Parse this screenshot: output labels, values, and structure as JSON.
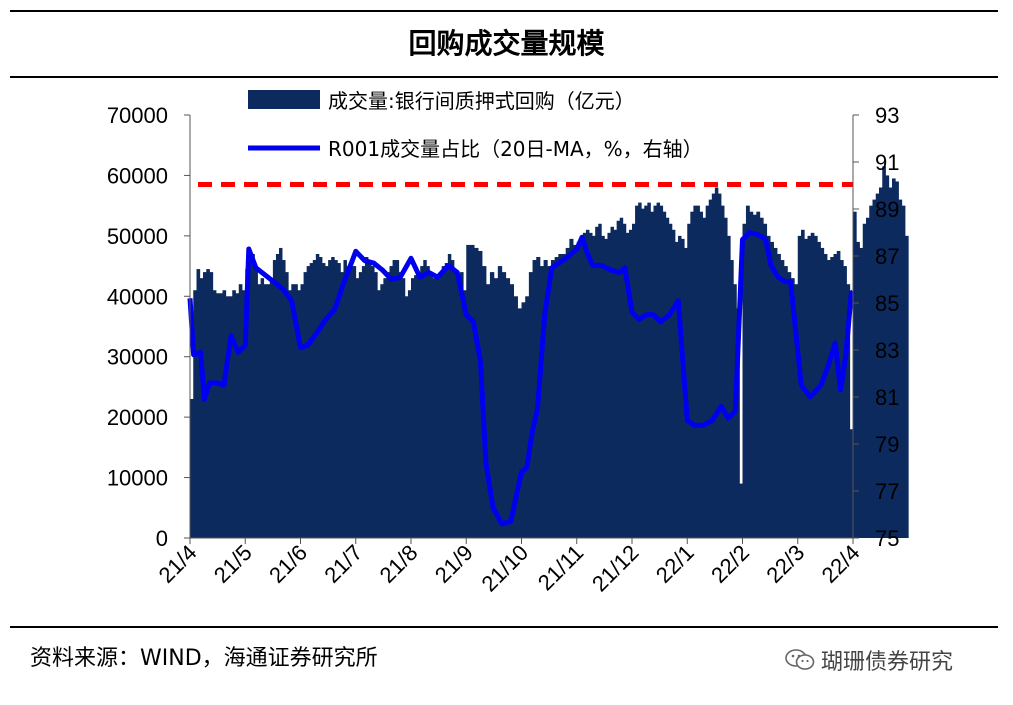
{
  "chart_data": {
    "type": "bar",
    "title": "回购成交量规模",
    "left_axis": {
      "ylim": [
        0,
        70000
      ],
      "ticks": [
        "0",
        "10000",
        "20000",
        "30000",
        "40000",
        "50000",
        "60000",
        "70000"
      ]
    },
    "right_axis": {
      "ylim": [
        75,
        93
      ],
      "ticks": [
        "75",
        "77",
        "79",
        "81",
        "83",
        "85",
        "87",
        "89",
        "91",
        "93"
      ]
    },
    "x_tick_labels": [
      "21/4",
      "21/5",
      "21/6",
      "21/7",
      "21/8",
      "21/9",
      "21/10",
      "21/11",
      "21/12",
      "22/1",
      "22/2",
      "22/3",
      "22/4"
    ],
    "series": [
      {
        "name": "成交量:银行间质押式回购（亿元）",
        "type": "bar",
        "axis": "left",
        "color": "#0d2a5e",
        "months": [
          {
            "values": [
              23000,
              41000,
              44500,
              43000,
              44000,
              44500,
              44000,
              41000,
              40500,
              40500,
              41000,
              40000,
              40000,
              41000,
              40500,
              42000,
              41000
            ]
          },
          {
            "values": [
              44500,
              46000,
              47000,
              45000,
              42000,
              43000,
              42000,
              42000,
              43000,
              46000,
              47000,
              48000,
              46000,
              44000,
              41000,
              42000,
              42000,
              41000
            ]
          },
          {
            "values": [
              42000,
              44000,
              45000,
              45500,
              46000,
              47000,
              46500,
              45500,
              45000,
              46000,
              46500,
              46000,
              45500,
              44000,
              46000,
              45000,
              45000,
              45000
            ]
          },
          {
            "values": [
              43000,
              44000,
              45000,
              46500,
              46000,
              45000,
              44000,
              41000,
              42000,
              43000,
              44000,
              45000,
              46000,
              46000,
              44000,
              43000,
              40000,
              41000
            ]
          },
          {
            "values": [
              43000,
              43500,
              44000,
              45000,
              46000,
              45000,
              44000,
              43000,
              43000,
              44000,
              45000,
              45500,
              47000,
              46000,
              44000,
              43000,
              44000,
              41000
            ]
          },
          {
            "values": [
              48500,
              48500,
              48000,
              47500,
              45000,
              42000,
              44000,
              43000,
              45000,
              44000,
              43000,
              42000,
              40000,
              38000
            ]
          },
          {
            "values": [
              39000,
              40000,
              44000,
              46000,
              46500,
              45000,
              46000,
              45000,
              46000,
              46500,
              47000,
              47000,
              48000,
              49500,
              48500
            ]
          },
          {
            "values": [
              49000,
              50000,
              50500,
              51000,
              50500,
              50000,
              51500,
              52000,
              50000,
              49500,
              50500,
              51500,
              51000,
              52500,
              53000,
              52000,
              50500,
              51000
            ]
          },
          {
            "values": [
              52000,
              55000,
              55500,
              54500,
              55000,
              55500,
              54000,
              55000,
              55500,
              55000,
              54000,
              53000,
              52000,
              51000,
              49000,
              50000,
              49500,
              48000
            ]
          },
          {
            "values": [
              52000,
              54000,
              55000,
              55000,
              54000,
              53000,
              55000,
              56000,
              57000,
              58000,
              57000,
              55000,
              53000,
              50000,
              46000,
              42000,
              38000,
              9000
            ]
          },
          {
            "values": [
              52000,
              55000,
              54000,
              53500,
              54000,
              53000,
              52000,
              50000,
              49000,
              48000,
              47000,
              46000,
              45000,
              44000,
              43000,
              42000
            ]
          },
          {
            "values": [
              50000,
              51000,
              49500,
              50000,
              50500,
              50000,
              49000,
              48000,
              47000,
              46000,
              46500,
              47000,
              47500,
              46000,
              45000,
              42000,
              18000
            ]
          },
          {
            "values": [
              54000,
              49000,
              48000,
              52000,
              53000,
              55000,
              56000,
              57000,
              58000,
              61500,
              60000,
              58000,
              59500,
              59000,
              56000,
              55000,
              50000
            ]
          }
        ]
      },
      {
        "name": "R001成交量占比（20日-MA，%，右轴）",
        "type": "line",
        "axis": "right",
        "color": "#0000ee",
        "points": [
          [
            "21/4/1",
            85.2
          ],
          [
            "21/4/3",
            82.8
          ],
          [
            "21/4/7",
            82.9
          ],
          [
            "21/4/9",
            80.9
          ],
          [
            "21/4/12",
            81.6
          ],
          [
            "21/4/16",
            81.6
          ],
          [
            "21/4/20",
            81.5
          ],
          [
            "21/4/24",
            83.6
          ],
          [
            "21/4/28",
            82.9
          ],
          [
            "21/5/1",
            83.2
          ],
          [
            "21/5/3",
            87.3
          ],
          [
            "21/5/7",
            86.5
          ],
          [
            "21/5/12",
            86.2
          ],
          [
            "21/5/17",
            85.9
          ],
          [
            "21/5/22",
            85.6
          ],
          [
            "21/5/27",
            85.1
          ],
          [
            "21/6/1",
            83.1
          ],
          [
            "21/6/5",
            83.2
          ],
          [
            "21/6/10",
            83.7
          ],
          [
            "21/6/15",
            84.3
          ],
          [
            "21/6/20",
            84.7
          ],
          [
            "21/6/25",
            85.8
          ],
          [
            "21/7/1",
            87.2
          ],
          [
            "21/7/6",
            86.8
          ],
          [
            "21/7/11",
            86.7
          ],
          [
            "21/7/16",
            86.4
          ],
          [
            "21/7/21",
            86.0
          ],
          [
            "21/7/26",
            86.1
          ],
          [
            "21/8/1",
            86.9
          ],
          [
            "21/8/6",
            86.1
          ],
          [
            "21/8/11",
            86.3
          ],
          [
            "21/8/16",
            86.1
          ],
          [
            "21/8/22",
            86.6
          ],
          [
            "21/8/27",
            86.3
          ],
          [
            "21/9/1",
            84.5
          ],
          [
            "21/9/5",
            84.2
          ],
          [
            "21/9/9",
            82.5
          ],
          [
            "21/9/12",
            78.2
          ],
          [
            "21/9/16",
            76.3
          ],
          [
            "21/9/21",
            75.6
          ],
          [
            "21/9/26",
            75.7
          ],
          [
            "21/10/1",
            77.8
          ],
          [
            "21/10/4",
            78.0
          ],
          [
            "21/10/7",
            79.5
          ],
          [
            "21/10/10",
            80.5
          ],
          [
            "21/10/14",
            84.5
          ],
          [
            "21/10/18",
            86.5
          ],
          [
            "21/10/22",
            86.7
          ],
          [
            "21/10/26",
            86.9
          ],
          [
            "21/11/1",
            87.3
          ],
          [
            "21/11/4",
            87.8
          ],
          [
            "21/11/7",
            87.1
          ],
          [
            "21/11/10",
            86.6
          ],
          [
            "21/11/15",
            86.6
          ],
          [
            "21/11/20",
            86.4
          ],
          [
            "21/11/25",
            86.3
          ],
          [
            "21/11/28",
            86.5
          ],
          [
            "21/12/1",
            84.6
          ],
          [
            "21/12/5",
            84.3
          ],
          [
            "21/12/9",
            84.5
          ],
          [
            "21/12/13",
            84.5
          ],
          [
            "21/12/17",
            84.2
          ],
          [
            "21/12/22",
            84.5
          ],
          [
            "21/12/27",
            85.1
          ],
          [
            "22/1/1",
            80.0
          ],
          [
            "22/1/5",
            79.8
          ],
          [
            "22/1/10",
            79.8
          ],
          [
            "22/1/15",
            80.0
          ],
          [
            "22/1/20",
            80.6
          ],
          [
            "22/1/24",
            80.1
          ],
          [
            "22/1/28",
            80.4
          ],
          [
            "22/2/1",
            87.7
          ],
          [
            "22/2/5",
            88.0
          ],
          [
            "22/2/10",
            87.9
          ],
          [
            "22/2/14",
            87.7
          ],
          [
            "22/2/17",
            86.6
          ],
          [
            "22/2/21",
            86.1
          ],
          [
            "22/2/25",
            85.9
          ],
          [
            "22/2/28",
            85.9
          ],
          [
            "22/3/3",
            81.5
          ],
          [
            "22/3/8",
            81.0
          ],
          [
            "22/3/14",
            81.5
          ],
          [
            "22/3/18",
            82.3
          ],
          [
            "22/3/22",
            83.3
          ],
          [
            "22/3/25",
            81.3
          ],
          [
            "22/3/28",
            82.8
          ],
          [
            "22/3/31",
            85.4
          ],
          [
            "22/4/1",
            85.5
          ]
        ]
      },
      {
        "name": "",
        "type": "reference_line",
        "axis": "left",
        "value": 58500,
        "color": "#ff0000",
        "style": "dashed"
      }
    ],
    "legend": [
      {
        "label": "成交量:银行间质押式回购（亿元）",
        "marker": "block",
        "color": "#0d2a5e"
      },
      {
        "label": "R001成交量占比（20日-MA，%，右轴）",
        "marker": "line",
        "color": "#0000ee"
      }
    ],
    "legend_placement": "top-center",
    "grid": false
  },
  "source_note": "资料来源：WIND，海通证券研究所",
  "watermark": "瑚珊债券研究"
}
